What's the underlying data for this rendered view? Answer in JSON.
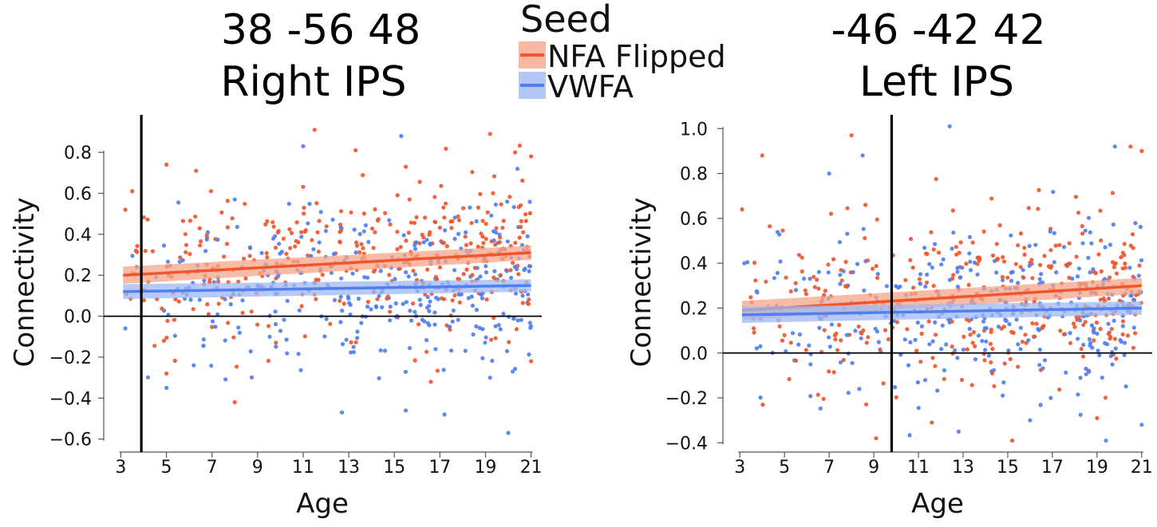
{
  "legend": {
    "title": "Seed",
    "entries": [
      {
        "label": "NFA Flipped",
        "color": "#f0562e",
        "ribbon": "#f5a488"
      },
      {
        "label": "VWFA",
        "color": "#4f7ff0",
        "ribbon": "#9db8f2"
      }
    ]
  },
  "chart_data": [
    {
      "type": "scatter",
      "title_line1": "38 -56 48",
      "title_line2": "Right IPS",
      "xlabel": "Age",
      "ylabel": "Connectivity",
      "xlim": [
        2.6,
        21.4
      ],
      "ylim": [
        -0.64,
        0.96
      ],
      "x_ticks": [
        3,
        5,
        7,
        9,
        11,
        13,
        15,
        17,
        19,
        21
      ],
      "x_tick_labels": [
        "3",
        "5",
        "7",
        "9",
        "11",
        "13",
        "15",
        "17",
        "19",
        "21"
      ],
      "y_ticks": [
        -0.6,
        -0.4,
        -0.2,
        0.0,
        0.2,
        0.4,
        0.6,
        0.8
      ],
      "y_tick_labels": [
        "−0.6",
        "−0.4",
        "−0.2",
        "0.0",
        "0.2",
        "0.4",
        "0.6",
        "0.8"
      ],
      "reference_hline": 0.0,
      "reference_vline": 3.9,
      "series": [
        {
          "name": "NFA Flipped",
          "fit": {
            "x": [
              3.1,
              21.0
            ],
            "y": [
              0.2,
              0.31
            ]
          },
          "ci_width": 0.035,
          "n_points": 360,
          "sample_points": [
            [
              3.2,
              0.52
            ],
            [
              3.5,
              0.61
            ],
            [
              5.0,
              0.74
            ],
            [
              5.0,
              -0.28
            ],
            [
              6.3,
              0.71
            ],
            [
              8.0,
              -0.42
            ],
            [
              11.5,
              0.91
            ],
            [
              13.3,
              0.81
            ],
            [
              15.5,
              0.73
            ],
            [
              16.6,
              -0.32
            ],
            [
              19.2,
              0.89
            ],
            [
              20.3,
              0.8
            ],
            [
              21.0,
              0.78
            ],
            [
              21.0,
              -0.22
            ]
          ]
        },
        {
          "name": "VWFA",
          "fit": {
            "x": [
              3.1,
              21.0
            ],
            "y": [
              0.12,
              0.15
            ]
          },
          "ci_width": 0.03,
          "n_points": 340,
          "sample_points": [
            [
              3.2,
              -0.06
            ],
            [
              3.7,
              0.24
            ],
            [
              5.0,
              -0.35
            ],
            [
              6.0,
              0.14
            ],
            [
              8.0,
              0.57
            ],
            [
              11.0,
              0.83
            ],
            [
              12.7,
              -0.47
            ],
            [
              15.3,
              0.88
            ],
            [
              15.5,
              -0.46
            ],
            [
              17.2,
              -0.48
            ],
            [
              19.2,
              -0.3
            ],
            [
              20.0,
              -0.57
            ],
            [
              20.4,
              0.72
            ]
          ]
        }
      ]
    },
    {
      "type": "scatter",
      "title_line1": "-46 -42 42",
      "title_line2": "Left IPS",
      "xlabel": "Age",
      "ylabel": "Connectivity",
      "xlim": [
        2.6,
        21.4
      ],
      "ylim": [
        -0.42,
        1.04
      ],
      "x_ticks": [
        3,
        5,
        7,
        9,
        11,
        13,
        15,
        17,
        19,
        21
      ],
      "x_tick_labels": [
        "3",
        "5",
        "7",
        "9",
        "11",
        "13",
        "15",
        "17",
        "19",
        "21"
      ],
      "y_ticks": [
        -0.4,
        -0.2,
        0.0,
        0.2,
        0.4,
        0.6,
        0.8,
        1.0
      ],
      "y_tick_labels": [
        "−0.4",
        "−0.2",
        "0.0",
        "0.2",
        "0.4",
        "0.6",
        "0.8",
        "1.0"
      ],
      "reference_hline": 0.0,
      "reference_vline": 9.8,
      "series": [
        {
          "name": "NFA Flipped",
          "fit": {
            "x": [
              3.1,
              21.0
            ],
            "y": [
              0.19,
              0.3
            ]
          },
          "ci_width": 0.035,
          "n_points": 360,
          "sample_points": [
            [
              3.1,
              0.64
            ],
            [
              4.0,
              0.88
            ],
            [
              8.0,
              0.97
            ],
            [
              9.1,
              -0.38
            ],
            [
              11.6,
              -0.31
            ],
            [
              15.2,
              -0.39
            ],
            [
              19.0,
              -0.29
            ],
            [
              20.5,
              0.92
            ],
            [
              21.0,
              0.9
            ]
          ]
        },
        {
          "name": "VWFA",
          "fit": {
            "x": [
              3.1,
              21.0
            ],
            "y": [
              0.17,
              0.2
            ]
          },
          "ci_width": 0.03,
          "n_points": 340,
          "sample_points": [
            [
              3.2,
              0.4
            ],
            [
              7.0,
              0.8
            ],
            [
              8.5,
              0.88
            ],
            [
              12.4,
              1.01
            ],
            [
              12.8,
              -0.35
            ],
            [
              16.0,
              -0.3
            ],
            [
              19.4,
              -0.39
            ],
            [
              19.8,
              0.92
            ],
            [
              21.0,
              -0.32
            ]
          ]
        }
      ]
    }
  ]
}
